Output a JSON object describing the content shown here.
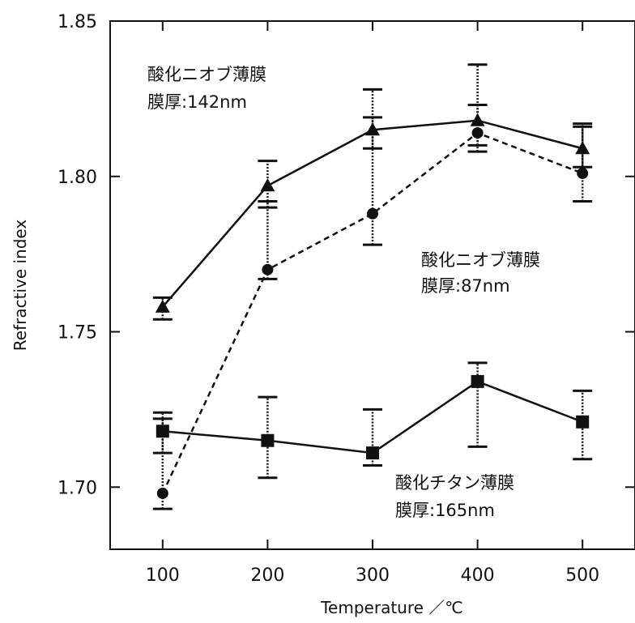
{
  "chart_data": {
    "type": "line",
    "title": "",
    "xlabel": "Temperature ／℃",
    "ylabel": "Refractive index",
    "xlim": [
      50,
      550
    ],
    "ylim": [
      1.68,
      1.85
    ],
    "x_ticks": [
      100,
      200,
      300,
      400,
      500
    ],
    "x_tick_labels": [
      "100",
      "200",
      "300",
      "400",
      "500"
    ],
    "y_ticks": [
      1.7,
      1.75,
      1.8,
      1.85
    ],
    "y_tick_labels": [
      "1.70",
      "1.75",
      "1.80",
      "1.85"
    ],
    "grid": false,
    "series": [
      {
        "marker": "triangle",
        "line": "solid",
        "x": [
          100,
          200,
          300,
          400,
          500
        ],
        "y": [
          1.758,
          1.797,
          1.815,
          1.818,
          1.809
        ],
        "err_low": [
          1.754,
          1.79,
          1.809,
          1.81,
          1.803
        ],
        "err_high": [
          1.761,
          1.805,
          1.819,
          1.823,
          1.816
        ]
      },
      {
        "marker": "circle",
        "line": "dashed",
        "x": [
          100,
          200,
          300,
          400,
          500
        ],
        "y": [
          1.698,
          1.77,
          1.788,
          1.814,
          1.801
        ],
        "err_low": [
          1.693,
          1.767,
          1.778,
          1.808,
          1.792
        ],
        "err_high": [
          1.724,
          1.792,
          1.828,
          1.836,
          1.817
        ]
      },
      {
        "marker": "square",
        "line": "solid",
        "x": [
          100,
          200,
          300,
          400,
          500
        ],
        "y": [
          1.718,
          1.715,
          1.711,
          1.734,
          1.721
        ],
        "err_low": [
          1.711,
          1.703,
          1.707,
          1.713,
          1.709
        ],
        "err_high": [
          1.722,
          1.729,
          1.725,
          1.74,
          1.731
        ]
      }
    ],
    "annotations": [
      {
        "lines": [
          "酸化ニオブ薄膜",
          "膜厚:142nm"
        ]
      },
      {
        "lines": [
          "酸化ニオブ薄膜",
          "膜厚:87nm"
        ]
      },
      {
        "lines": [
          "酸化チタン薄膜",
          "膜厚:165nm"
        ]
      }
    ],
    "colors": {
      "line": "#111111",
      "marker": "#111111",
      "background": "#ffffff"
    }
  }
}
